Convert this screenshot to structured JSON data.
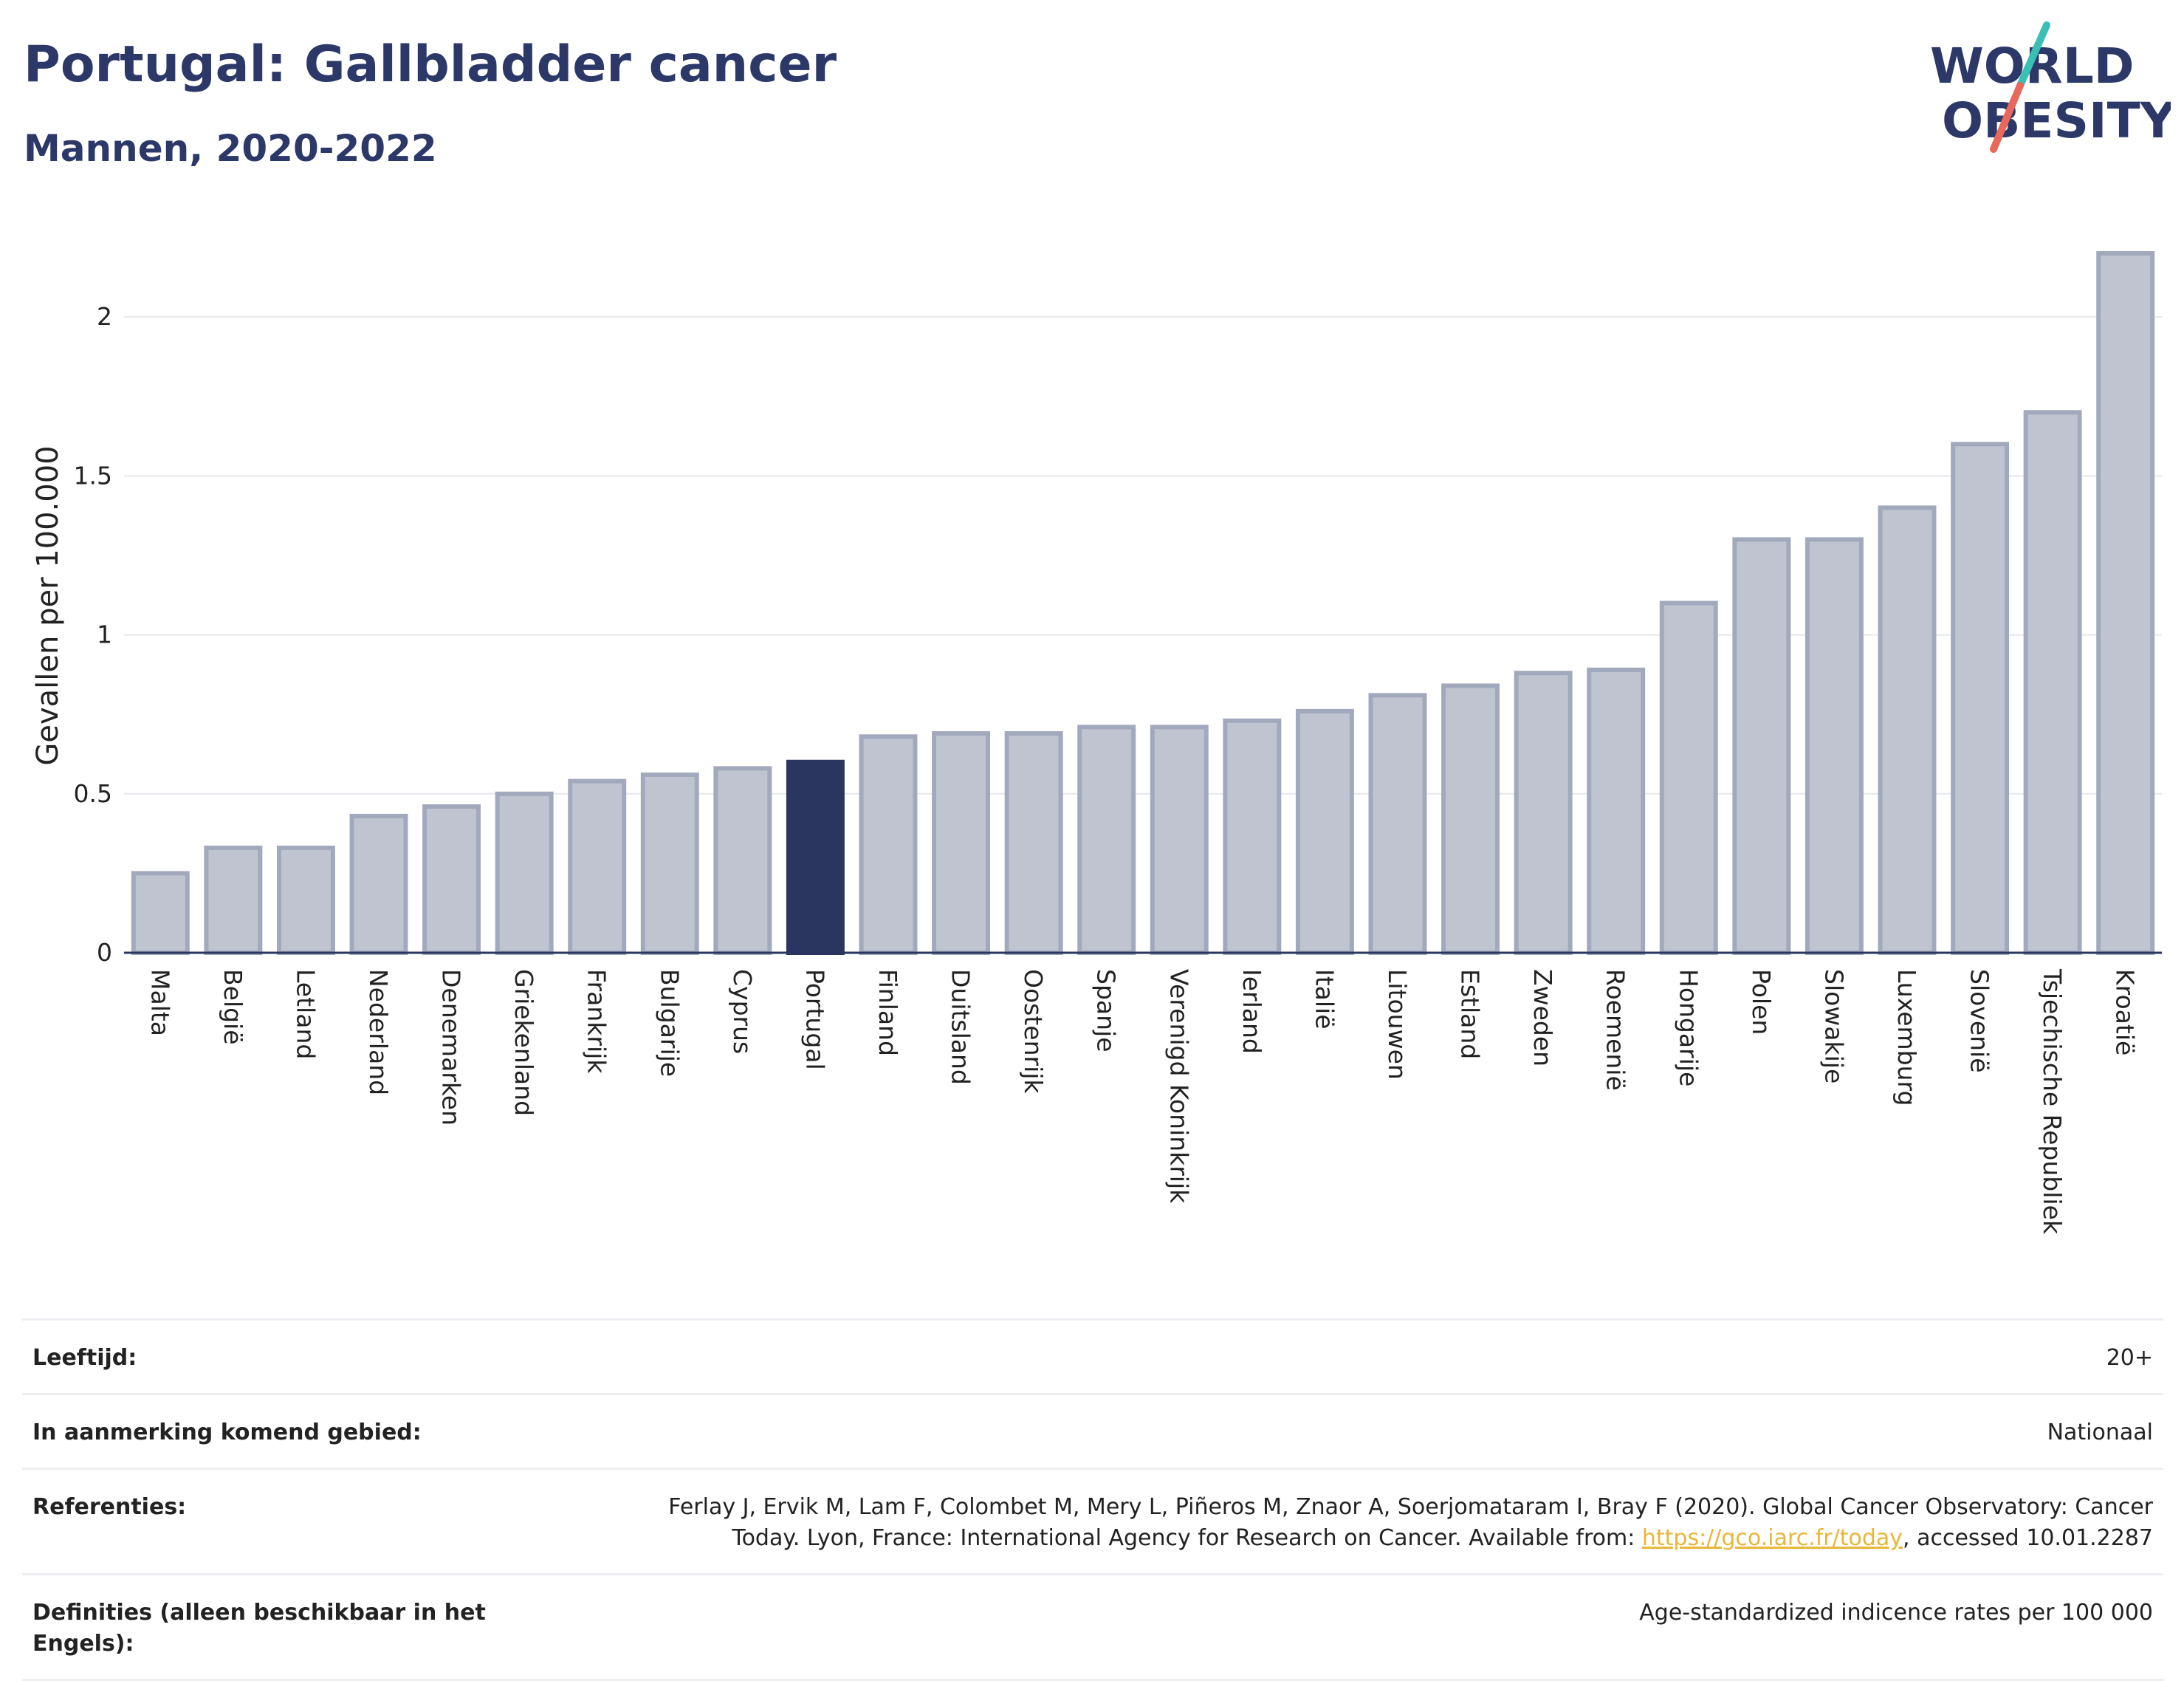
{
  "header": {
    "title": "Portugal: Gallbladder cancer",
    "subtitle": "Mannen, 2020-2022"
  },
  "logo": {
    "line1": "WORLD",
    "line2": "OBESITY",
    "text_color": "#2b3868",
    "slash_top_color": "#3bbfb4",
    "slash_bottom_color": "#e8695c"
  },
  "colors": {
    "bar_default_fill": "#c0c4d1",
    "bar_default_stroke": "#a3a9bd",
    "bar_highlight": "#2b3660",
    "grid": "#e6e8ee",
    "axis": "#2b3660"
  },
  "chart_data": {
    "type": "bar",
    "ylabel": "Gevallen per 100.000",
    "ylim": [
      0,
      2.3
    ],
    "yticks": [
      0,
      0.5,
      1,
      1.5,
      2
    ],
    "ytick_labels": [
      "0",
      "0.5",
      "1",
      "1.5",
      "2"
    ],
    "highlight": "Portugal",
    "categories": [
      "Malta",
      "België",
      "Letland",
      "Nederland",
      "Denemarken",
      "Griekenland",
      "Frankrijk",
      "Bulgarije",
      "Cyprus",
      "Portugal",
      "Finland",
      "Duitsland",
      "Oostenrijk",
      "Spanje",
      "Verenigd Koninkrijk",
      "Ierland",
      "Italië",
      "Litouwen",
      "Estland",
      "Zweden",
      "Roemenië",
      "Hongarije",
      "Polen",
      "Slowakije",
      "Luxemburg",
      "Slovenië",
      "Tsjechische Republiek",
      "Kroatië"
    ],
    "values": [
      0.25,
      0.33,
      0.33,
      0.43,
      0.46,
      0.5,
      0.54,
      0.56,
      0.58,
      0.6,
      0.68,
      0.69,
      0.69,
      0.71,
      0.71,
      0.73,
      0.76,
      0.81,
      0.84,
      0.88,
      0.89,
      1.1,
      1.3,
      1.3,
      1.4,
      1.6,
      1.7,
      2.2
    ]
  },
  "info": {
    "rows": [
      {
        "label": "Leeftijd:",
        "value": "20+"
      },
      {
        "label": "In aanmerking komend gebied:",
        "value": "Nationaal"
      }
    ],
    "references": {
      "label": "Referenties:",
      "text_line1": "Ferlay J, Ervik M, Lam F, Colombet M, Mery L, Piñeros M, Znaor A, Soerjomataram I, Bray F (2020). Global Cancer Observatory: Cancer",
      "text_line2_before": "Today. Lyon, France: International Agency for Research on Cancer. Available from: ",
      "link": "https://gco.iarc.fr/today",
      "text_line2_after": ", accessed 10.01.2287"
    },
    "definitions": {
      "label": "Definities (alleen beschikbaar in het Engels):",
      "value": "Age-standardized indicence rates per 100 000"
    }
  }
}
